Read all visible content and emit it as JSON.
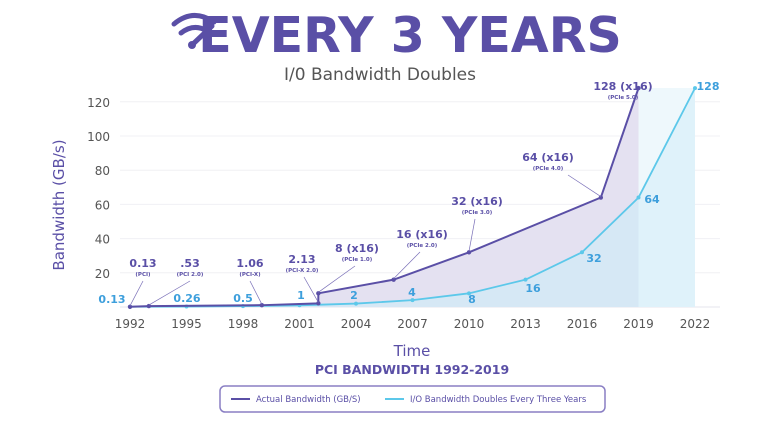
{
  "header": {
    "title": "EVERY 3 YEARS",
    "subtitle": "I/0 Bandwidth Doubles",
    "logo_icon": "wifi-gauge-icon"
  },
  "colors": {
    "primary": "#5a4fa6",
    "secondary": "#5cc8ea",
    "secondary_label": "#3d9fdc",
    "axis_text": "#555555"
  },
  "chart_data": {
    "type": "line",
    "title": "PCI BANDWIDTH 1992-2019",
    "xlabel": "Time",
    "ylabel": "Bandwidth (GB/s)",
    "xlim": [
      1992,
      2022
    ],
    "ylim": [
      0,
      128
    ],
    "x_ticks": [
      "1992",
      "1995",
      "1998",
      "2001",
      "2004",
      "2007",
      "2010",
      "2013",
      "2016",
      "2019",
      "2022"
    ],
    "y_ticks": [
      "20",
      "40",
      "60",
      "80",
      "100",
      "120"
    ],
    "grid": true,
    "legend_position": "bottom",
    "series": [
      {
        "name": "Actual Bandwidth (GB/S)",
        "points": [
          [
            1992,
            0.13
          ],
          [
            1993,
            0.53
          ],
          [
            1999,
            1.06
          ],
          [
            2002,
            2.13
          ],
          [
            2002,
            8
          ],
          [
            2006,
            16
          ],
          [
            2010,
            32
          ],
          [
            2017,
            64
          ],
          [
            2019,
            128
          ]
        ],
        "annotations": [
          {
            "value": "0.13",
            "spec": "(PCI)"
          },
          {
            "value": ".53",
            "spec": "(PCI 2.0)"
          },
          {
            "value": "1.06",
            "spec": "(PCI-X)"
          },
          {
            "value": "2.13",
            "spec": "(PCI-X 2.0)"
          },
          {
            "value": "8 (x16)",
            "spec": "(PCIe 1.0)"
          },
          {
            "value": "16 (x16)",
            "spec": "(PCIe 2.0)"
          },
          {
            "value": "32 (x16)",
            "spec": "(PCIe 3.0)"
          },
          {
            "value": "64 (x16)",
            "spec": "(PCIe 4.0)"
          },
          {
            "value": "128 (x16)",
            "spec": "(PCIe 5.0)"
          }
        ]
      },
      {
        "name": "I/O Bandwidth Doubles Every Three Years",
        "points": [
          [
            1992,
            0.13
          ],
          [
            1995,
            0.26
          ],
          [
            1998,
            0.5
          ],
          [
            2001,
            1
          ],
          [
            2004,
            2
          ],
          [
            2007,
            4
          ],
          [
            2010,
            8
          ],
          [
            2013,
            16
          ],
          [
            2016,
            32
          ],
          [
            2019,
            64
          ],
          [
            2022,
            128
          ]
        ],
        "labels": [
          "0.13",
          "0.26",
          "0.5",
          "1",
          "2",
          "4",
          "8",
          "16",
          "32",
          "64",
          "128"
        ]
      }
    ]
  }
}
